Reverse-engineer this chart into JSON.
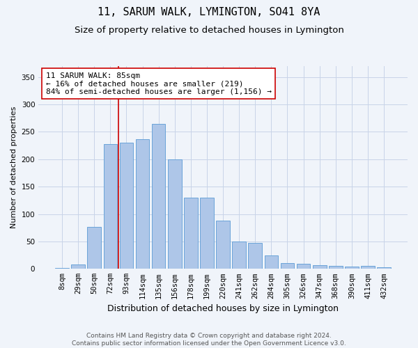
{
  "title": "11, SARUM WALK, LYMINGTON, SO41 8YA",
  "subtitle": "Size of property relative to detached houses in Lymington",
  "xlabel": "Distribution of detached houses by size in Lymington",
  "ylabel": "Number of detached properties",
  "categories": [
    "8sqm",
    "29sqm",
    "50sqm",
    "72sqm",
    "93sqm",
    "114sqm",
    "135sqm",
    "156sqm",
    "178sqm",
    "199sqm",
    "220sqm",
    "241sqm",
    "262sqm",
    "284sqm",
    "305sqm",
    "326sqm",
    "347sqm",
    "368sqm",
    "390sqm",
    "411sqm",
    "432sqm"
  ],
  "values": [
    2,
    8,
    77,
    228,
    230,
    237,
    265,
    200,
    130,
    130,
    88,
    50,
    47,
    25,
    11,
    9,
    7,
    5,
    4,
    6,
    3
  ],
  "bar_color": "#aec6e8",
  "bar_edge_color": "#5b9bd5",
  "vline_pos": 3.5,
  "vline_color": "#cc0000",
  "annotation_text": "11 SARUM WALK: 85sqm\n← 16% of detached houses are smaller (219)\n84% of semi-detached houses are larger (1,156) →",
  "annotation_box_color": "#ffffff",
  "annotation_box_edge": "#cc0000",
  "ylim": [
    0,
    370
  ],
  "yticks": [
    0,
    50,
    100,
    150,
    200,
    250,
    300,
    350
  ],
  "background_color": "#f0f4fa",
  "plot_bg_color": "#f0f4fa",
  "grid_color": "#c8d4e8",
  "title_fontsize": 11,
  "subtitle_fontsize": 9.5,
  "xlabel_fontsize": 9,
  "ylabel_fontsize": 8,
  "tick_fontsize": 7.5,
  "annotation_fontsize": 8,
  "footer_fontsize": 6.5,
  "footer_text": "Contains HM Land Registry data © Crown copyright and database right 2024.\nContains public sector information licensed under the Open Government Licence v3.0."
}
